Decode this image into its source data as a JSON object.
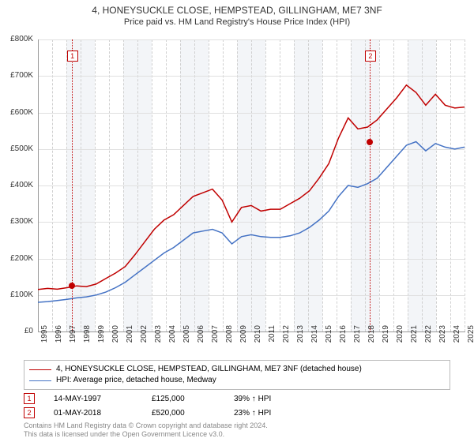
{
  "title_main": "4, HONEYSUCKLE CLOSE, HEMPSTEAD, GILLINGHAM, ME7 3NF",
  "title_sub": "Price paid vs. HM Land Registry's House Price Index (HPI)",
  "chart": {
    "type": "line",
    "background_color": "#ffffff",
    "grid_color": "#e0e0e0",
    "axis_color": "#999999",
    "shade_color": "#f0f2f6",
    "vline_color": "#d0d0d0",
    "ylim": [
      0,
      800000
    ],
    "ytick_step": 100000,
    "yticks": [
      "£0",
      "£100K",
      "£200K",
      "£300K",
      "£400K",
      "£500K",
      "£600K",
      "£700K",
      "£800K"
    ],
    "x_years": [
      1995,
      1996,
      1997,
      1998,
      1999,
      2000,
      2001,
      2002,
      2003,
      2004,
      2005,
      2006,
      2007,
      2008,
      2009,
      2010,
      2011,
      2012,
      2013,
      2014,
      2015,
      2016,
      2017,
      2018,
      2019,
      2020,
      2021,
      2022,
      2023,
      2024,
      2025
    ],
    "label_fontsize": 10,
    "series": [
      {
        "name": "property",
        "label": "4, HONEYSUCKLE CLOSE, HEMPSTEAD, GILLINGHAM, ME7 3NF (detached house)",
        "color": "#c00000",
        "width": 1.5,
        "values": [
          115,
          118,
          116,
          120,
          125,
          123,
          130,
          145,
          160,
          178,
          210,
          245,
          280,
          305,
          320,
          345,
          370,
          380,
          390,
          360,
          300,
          340,
          345,
          330,
          335,
          335,
          350,
          365,
          385,
          420,
          460,
          530,
          585,
          555,
          560,
          580,
          610,
          640,
          675,
          655,
          620,
          650,
          620,
          612,
          615
        ]
      },
      {
        "name": "hpi",
        "label": "HPI: Average price, detached house, Medway",
        "color": "#4472c4",
        "width": 1.5,
        "values": [
          80,
          82,
          85,
          88,
          92,
          95,
          100,
          108,
          120,
          135,
          155,
          175,
          195,
          215,
          230,
          250,
          270,
          275,
          280,
          270,
          240,
          260,
          265,
          260,
          258,
          258,
          262,
          270,
          285,
          305,
          330,
          370,
          400,
          395,
          405,
          420,
          450,
          480,
          510,
          520,
          495,
          515,
          505,
          500,
          505
        ]
      }
    ],
    "markers": [
      {
        "n": "1",
        "year": 1997.37,
        "price": 125000
      },
      {
        "n": "2",
        "year": 2018.33,
        "price": 520000
      }
    ],
    "transactions": [
      {
        "n": "1",
        "date": "14-MAY-1997",
        "price": "£125,000",
        "vs_hpi": "39% ↑ HPI"
      },
      {
        "n": "2",
        "date": "01-MAY-2018",
        "price": "£520,000",
        "vs_hpi": "23% ↑ HPI"
      }
    ]
  },
  "attribution": "Contains HM Land Registry data © Crown copyright and database right 2024.\nThis data is licensed under the Open Government Licence v3.0."
}
